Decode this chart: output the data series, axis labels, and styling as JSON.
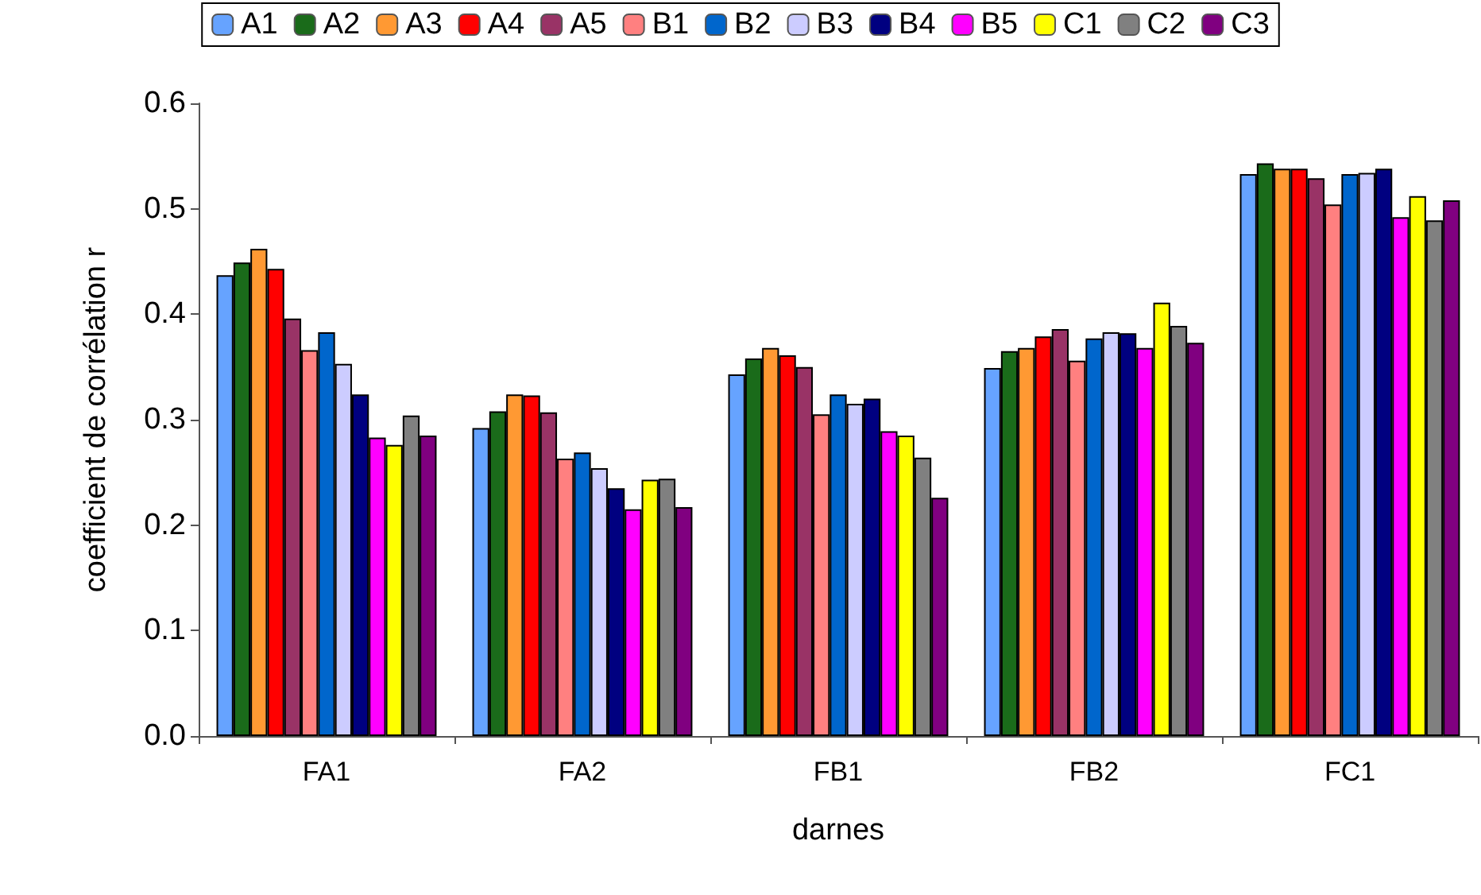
{
  "chart_data": {
    "type": "bar",
    "xlabel": "darnes",
    "ylabel": "coefficient de corrélation r",
    "categories": [
      "FA1",
      "FA2",
      "FB1",
      "FB2",
      "FC1"
    ],
    "ylim": [
      0,
      0.6
    ],
    "yticks": [
      {
        "value": 0,
        "label": "0.0"
      },
      {
        "value": 0.1,
        "label": "0.1"
      },
      {
        "value": 0.2,
        "label": "0.2"
      },
      {
        "value": 0.3,
        "label": "0.3"
      },
      {
        "value": 0.4,
        "label": "0.4"
      },
      {
        "value": 0.5,
        "label": "0.5"
      },
      {
        "value": 0.6,
        "label": "0.6"
      }
    ],
    "grid": false,
    "legend": "top",
    "series": [
      {
        "name": "A1",
        "color": "#66a3ff",
        "values": [
          0.437,
          0.292,
          0.343,
          0.349,
          0.533
        ]
      },
      {
        "name": "A2",
        "color": "#1a6b1a",
        "values": [
          0.449,
          0.308,
          0.358,
          0.365,
          0.543
        ]
      },
      {
        "name": "A3",
        "color": "#ff9933",
        "values": [
          0.462,
          0.324,
          0.368,
          0.368,
          0.538
        ]
      },
      {
        "name": "A4",
        "color": "#ff0000",
        "values": [
          0.443,
          0.323,
          0.361,
          0.379,
          0.538
        ]
      },
      {
        "name": "A5",
        "color": "#993366",
        "values": [
          0.396,
          0.307,
          0.35,
          0.386,
          0.529
        ]
      },
      {
        "name": "B1",
        "color": "#ff8080",
        "values": [
          0.366,
          0.263,
          0.305,
          0.356,
          0.504
        ]
      },
      {
        "name": "B2",
        "color": "#0066cc",
        "values": [
          0.383,
          0.269,
          0.324,
          0.377,
          0.533
        ]
      },
      {
        "name": "B3",
        "color": "#ccccff",
        "values": [
          0.353,
          0.254,
          0.315,
          0.383,
          0.534
        ]
      },
      {
        "name": "B4",
        "color": "#000080",
        "values": [
          0.324,
          0.235,
          0.32,
          0.382,
          0.538
        ]
      },
      {
        "name": "B5",
        "color": "#ff00ff",
        "values": [
          0.283,
          0.215,
          0.289,
          0.368,
          0.492
        ]
      },
      {
        "name": "C1",
        "color": "#ffff00",
        "values": [
          0.276,
          0.243,
          0.285,
          0.411,
          0.512
        ]
      },
      {
        "name": "C2",
        "color": "#808080",
        "values": [
          0.304,
          0.244,
          0.264,
          0.389,
          0.489
        ]
      },
      {
        "name": "C3",
        "color": "#800080",
        "values": [
          0.285,
          0.217,
          0.226,
          0.373,
          0.508
        ]
      }
    ]
  }
}
